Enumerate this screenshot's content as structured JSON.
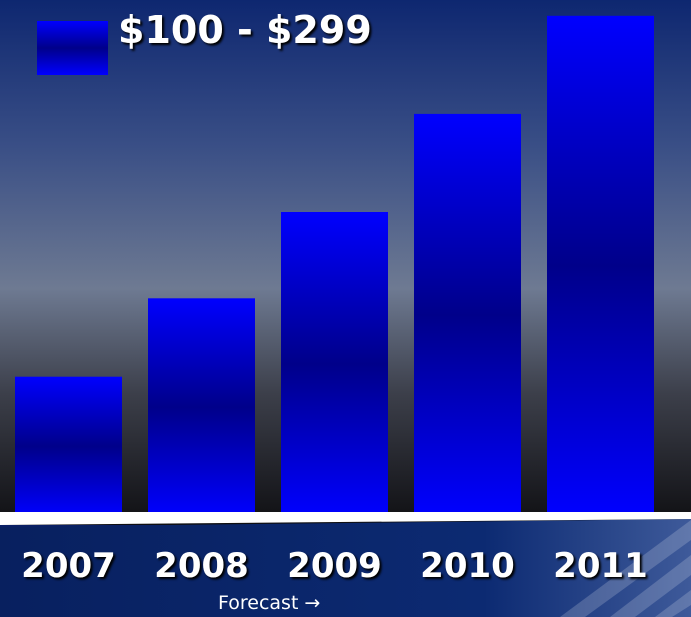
{
  "chart_data": {
    "type": "bar",
    "categories": [
      "2007",
      "2008",
      "2009",
      "2010",
      "2011"
    ],
    "series": [
      {
        "name": "$100 - $299",
        "values": [
          142,
          222,
          310,
          410,
          510
        ]
      }
    ],
    "title": "",
    "xlabel": "",
    "ylabel": "",
    "ylim": [
      0,
      520
    ],
    "grid": false,
    "legend_position": "top-left",
    "annotation": "Forecast →",
    "colors": {
      "bar_light": "#0000ff",
      "bar_dark": "#00008a",
      "background_top": "#102a72",
      "background_mid": "#6e7a92",
      "background_bottom": "#0f0f12",
      "axis_band": "#0a1f66"
    }
  }
}
